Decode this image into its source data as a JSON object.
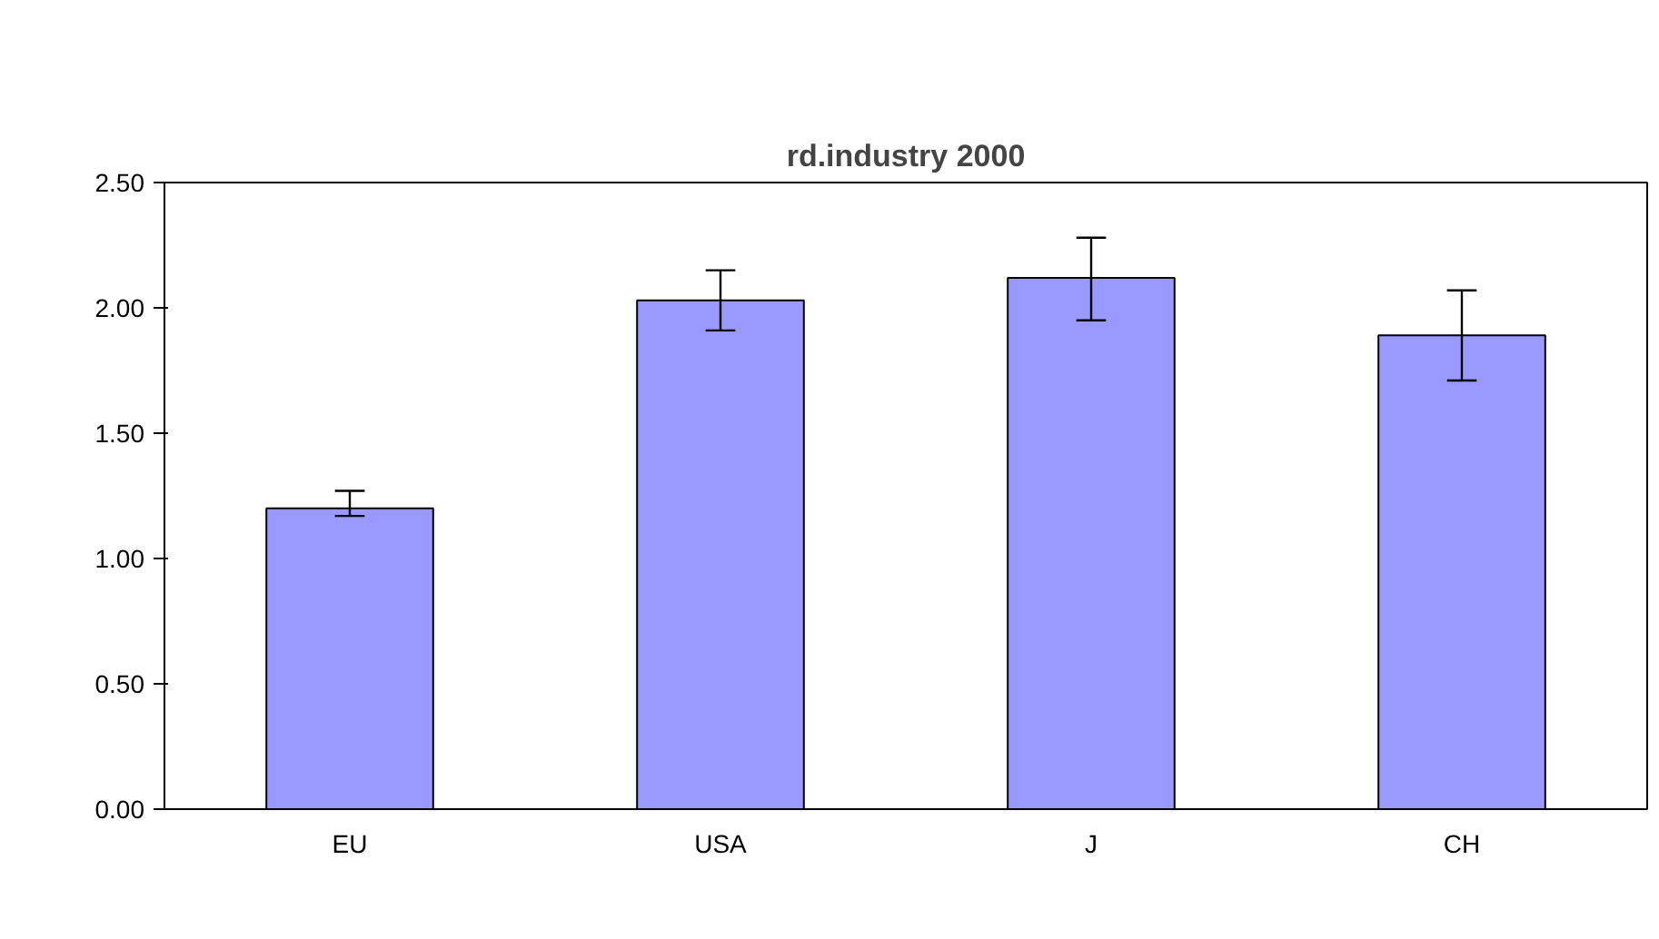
{
  "chart_data": {
    "type": "bar",
    "title": "rd.industry 2000",
    "categories": [
      "EU",
      "USA",
      "J",
      "CH"
    ],
    "series": [
      {
        "color": "#9999ff",
        "values": [
          1.2,
          2.03,
          2.12,
          1.89
        ],
        "errors": [
          [
            1.17,
            1.27
          ],
          [
            1.91,
            2.15
          ],
          [
            1.95,
            2.28
          ],
          [
            1.71,
            2.07
          ]
        ]
      }
    ],
    "ylim": [
      0,
      2.5
    ],
    "yticks": [
      {
        "value": 0,
        "label": "0.00"
      },
      {
        "value": 0.5,
        "label": "0.50"
      },
      {
        "value": 1,
        "label": "1.00"
      },
      {
        "value": 1.5,
        "label": "1.50"
      },
      {
        "value": 2,
        "label": "2.00"
      },
      {
        "value": 2.5,
        "label": "2.50"
      }
    ],
    "grid": false
  }
}
